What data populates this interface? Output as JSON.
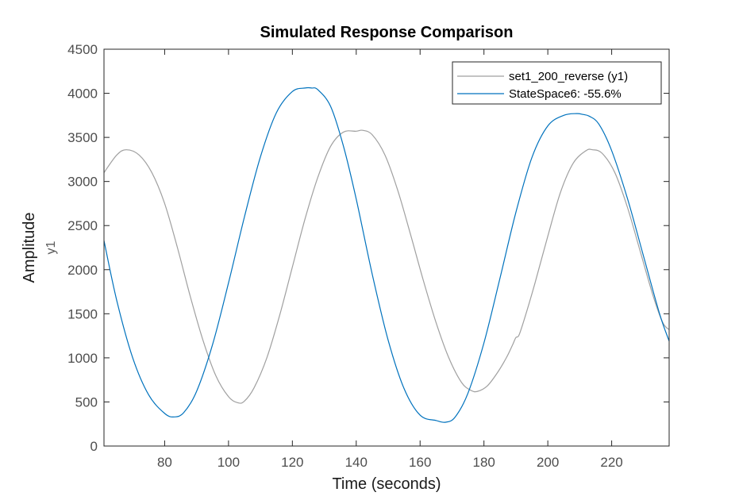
{
  "chart_data": {
    "type": "line",
    "title": "Simulated Response Comparison",
    "xlabel": "Time (seconds)",
    "ylabel": "Amplitude",
    "ylabel_sub": "y1",
    "xlim": [
      61,
      238
    ],
    "ylim": [
      0,
      4500
    ],
    "xticks": [
      80,
      100,
      120,
      140,
      160,
      180,
      200,
      220
    ],
    "yticks": [
      0,
      500,
      1000,
      1500,
      2000,
      2500,
      3000,
      3500,
      4000,
      4500
    ],
    "grid": false,
    "legend_position": "top-right",
    "series": [
      {
        "name": "set1_200_reverse (y1)",
        "color": "#a0a0a0",
        "x": [
          61,
          65,
          68,
          72,
          76,
          80,
          84,
          88,
          92,
          96,
          100,
          103,
          105,
          108,
          112,
          116,
          120,
          124,
          128,
          132,
          136,
          140,
          142,
          145,
          149,
          153,
          157,
          161,
          165,
          169,
          173,
          176,
          178,
          181,
          184,
          187,
          189,
          190,
          191,
          193,
          196,
          200,
          204,
          208,
          212,
          214,
          217,
          221,
          225,
          229,
          233,
          236,
          238
        ],
        "y": [
          3100,
          3300,
          3360,
          3300,
          3100,
          2750,
          2250,
          1700,
          1200,
          800,
          560,
          490,
          510,
          660,
          1000,
          1480,
          2030,
          2580,
          3050,
          3400,
          3560,
          3570,
          3580,
          3530,
          3300,
          2900,
          2400,
          1880,
          1400,
          1000,
          720,
          630,
          620,
          680,
          820,
          1000,
          1150,
          1230,
          1260,
          1480,
          1850,
          2380,
          2880,
          3210,
          3350,
          3360,
          3320,
          3100,
          2700,
          2200,
          1700,
          1400,
          1320
        ]
      },
      {
        "name": "StateSpace6: -55.6%",
        "color": "#0072bd",
        "x": [
          61,
          65,
          70,
          75,
          80,
          83,
          86,
          90,
          95,
          100,
          105,
          110,
          115,
          120,
          124,
          126,
          128,
          132,
          136,
          140,
          145,
          150,
          155,
          160,
          165,
          168,
          171,
          175,
          180,
          185,
          190,
          195,
          200,
          205,
          209,
          211,
          213,
          216,
          220,
          225,
          230,
          235,
          238
        ],
        "y": [
          2330,
          1650,
          1000,
          580,
          370,
          330,
          380,
          620,
          1150,
          1850,
          2600,
          3280,
          3780,
          4020,
          4060,
          4060,
          4040,
          3850,
          3400,
          2800,
          1950,
          1200,
          650,
          350,
          290,
          270,
          330,
          600,
          1170,
          1900,
          2650,
          3270,
          3630,
          3750,
          3770,
          3760,
          3740,
          3650,
          3350,
          2800,
          2150,
          1500,
          1190
        ]
      }
    ]
  }
}
